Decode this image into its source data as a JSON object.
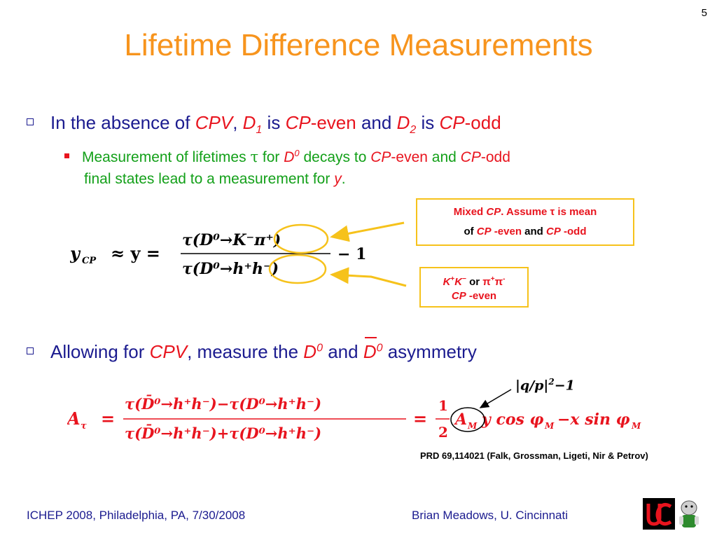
{
  "slide_number": "5",
  "title": "Lifetime Difference Measurements",
  "bullet1": {
    "t1": "In the absence of ",
    "cpv": "CPV",
    "t2": ", ",
    "d": "D",
    "sub1": "1",
    "t3": " is ",
    "cp": "CP",
    "t4": "-even",
    "t5": " and ",
    "d2": "D",
    "sub2": "2",
    "t6": " is ",
    "cp2": "CP",
    "t7": "-odd"
  },
  "subbullet": {
    "t1": "Measurement of lifetimes ",
    "tau": "τ",
    "t2": " for ",
    "d": "D",
    "sup": "0",
    "t3": " decays to ",
    "cp": "CP",
    "t4": "-even",
    "t5": " and ",
    "cp2": "CP",
    "t6": "-odd",
    "t7": "final states lead to a measurement for ",
    "y": "y",
    "t8": "."
  },
  "bullet2": {
    "t1": "Allowing for ",
    "cpv": "CPV",
    "t2": ", measure the ",
    "d": "D",
    "sup": "0",
    "t3": " and ",
    "dbar": "D",
    "sup2": "0",
    "t4": " asymmetry"
  },
  "annotation1": {
    "l1a": "Mixed ",
    "l1b": "CP",
    "l1c": ".  Assume ",
    "l1d": "τ",
    "l1e": " is mean",
    "l2a": "of ",
    "l2b": "CP",
    "l2c": " -even",
    "l2d": " and ",
    "l2e": "CP",
    "l2f": " -odd"
  },
  "annotation2": {
    "k1": "K",
    "kp": "+",
    "k2": "K",
    "km": "−",
    "or": " or ",
    "pi1": "π",
    "pip": "+",
    "pi2": "π",
    "pim": "-",
    "cp": "CP",
    "even": " -even"
  },
  "equation1": {
    "lhs": "y",
    "lhs_sub": "CP",
    "approx": "≈ y =",
    "num": "τ(D⁰→K⁻π⁺)",
    "den": "τ(D⁰→h⁺h⁻)",
    "rest": "− 1"
  },
  "equation2": {
    "lhs": "A",
    "lhs_sub": "τ",
    "eq": "=",
    "num": "τ(D̄⁰→h⁺h⁻)−τ(D⁰→h⁺h⁻)",
    "den": "τ(D̄⁰→h⁺h⁻)+τ(D⁰→h⁺h⁻)",
    "eq2": "=",
    "half_num": "1",
    "half_den": "2",
    "am": "A",
    "am_sub": "M",
    "rest": "y cos φ",
    "rest_sub": "M",
    "rest2": "−x sin φ",
    "rest2_sub": "M"
  },
  "am_label": {
    "text": "|q/p|",
    "sup": "2",
    "rest": "−1"
  },
  "reference": "PRD 69,114021 (Falk, Grossman, Ligeti, Nir & Petrov)",
  "footer": {
    "left": "ICHEP 2008, Philadelphia, PA, 7/30/2008",
    "right": "Brian Meadows, U. Cincinnati"
  },
  "colors": {
    "title": "#f7941d",
    "body_blue": "#1b1b8f",
    "accent_red": "#e8141e",
    "sub_green": "#13a019",
    "highlight_yellow": "#f6c21b"
  }
}
